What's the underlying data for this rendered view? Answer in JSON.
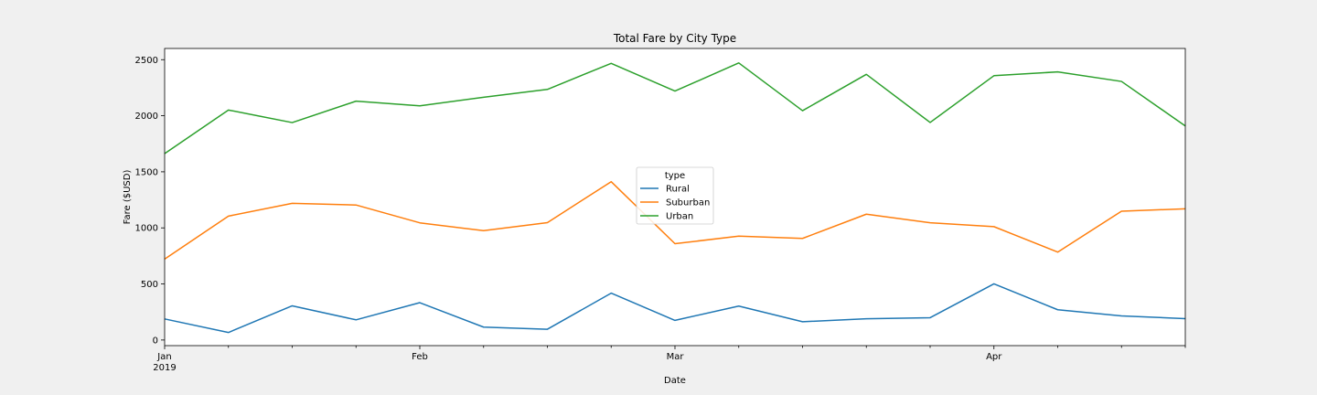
{
  "chart_data": {
    "type": "line",
    "title": "Total Fare by City Type",
    "xlabel": "Date",
    "ylabel": "Fare ($USD)",
    "x": [
      "2019-01-06",
      "2019-01-13",
      "2019-01-20",
      "2019-01-27",
      "2019-02-03",
      "2019-02-10",
      "2019-02-17",
      "2019-02-24",
      "2019-03-03",
      "2019-03-10",
      "2019-03-17",
      "2019-03-24",
      "2019-03-31",
      "2019-04-07",
      "2019-04-14",
      "2019-04-21",
      "2019-04-28"
    ],
    "series": [
      {
        "name": "Rural",
        "color": "#1f77b4",
        "values": [
          188,
          67,
          305,
          180,
          333,
          115,
          96,
          418,
          175,
          303,
          163,
          190,
          199,
          501,
          270,
          215,
          191
        ]
      },
      {
        "name": "Suburban",
        "color": "#ff7f0e",
        "values": [
          722,
          1105,
          1219,
          1204,
          1045,
          975,
          1047,
          1412,
          859,
          926,
          906,
          1122,
          1046,
          1011,
          784,
          1149,
          1170
        ]
      },
      {
        "name": "Urban",
        "color": "#2ca02c",
        "values": [
          1662,
          2051,
          1939,
          2130,
          2088,
          2165,
          2235,
          2467,
          2220,
          2471,
          2045,
          2369,
          1940,
          2357,
          2391,
          2306,
          1909
        ]
      }
    ],
    "ylim": [
      -50,
      2600
    ],
    "y_ticks": [
      0,
      500,
      1000,
      1500,
      2000,
      2500
    ],
    "x_ticks": [
      {
        "label": "Jan",
        "sublabel": "2019",
        "x": "2019-01-06"
      },
      {
        "label": "Feb",
        "sublabel": "",
        "x": "2019-02-03"
      },
      {
        "label": "Mar",
        "sublabel": "",
        "x": "2019-03-03"
      },
      {
        "label": "Apr",
        "sublabel": "",
        "x": "2019-04-07"
      }
    ],
    "legend": {
      "title": "type",
      "position": "center"
    },
    "grid": false
  }
}
